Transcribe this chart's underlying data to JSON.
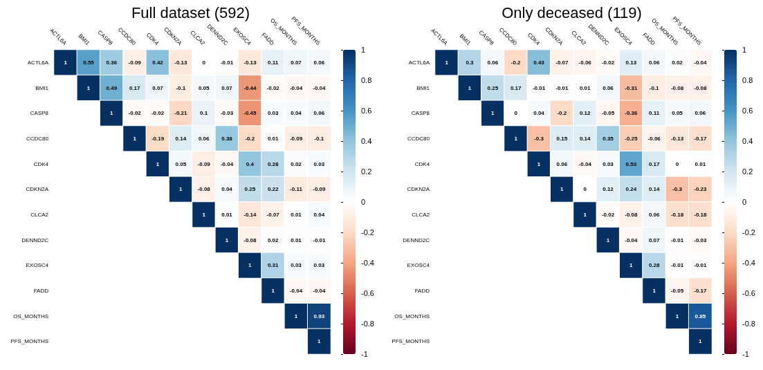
{
  "chart_data": [
    {
      "type": "heatmap",
      "title": "Full dataset (592)",
      "categories": [
        "ACTL6A",
        "BMI1",
        "CASP8",
        "CCDC80",
        "CDK4",
        "CDKN2A",
        "CLCA2",
        "DENND2C",
        "EXOSC4",
        "FADD",
        "OS_MONTHS",
        "PFS_MONTHS"
      ],
      "y_categories": [
        "ACTL6A",
        "BMI1",
        "CASP8",
        "CCDC80",
        "CDK4",
        "CDKN2A",
        "CLCA2",
        "DENND2C",
        "EXOSC4",
        "FADD",
        "OS_MONTHS",
        "PFS_MONTHS"
      ],
      "cells": [
        [
          1,
          0.55,
          0.36,
          -0.09,
          0.42,
          -0.13,
          0,
          -0.01,
          -0.13,
          0.11,
          0.07,
          0.06
        ],
        [
          null,
          1,
          0.49,
          0.17,
          0.07,
          -0.1,
          0.05,
          0.07,
          -0.44,
          -0.02,
          -0.04,
          -0.04
        ],
        [
          null,
          null,
          1,
          -0.02,
          -0.02,
          -0.21,
          0.1,
          -0.03,
          -0.45,
          0.03,
          0.04,
          0.06
        ],
        [
          null,
          null,
          null,
          1,
          -0.19,
          0.14,
          0.06,
          0.38,
          -0.2,
          0.01,
          -0.09,
          -0.1
        ],
        [
          null,
          null,
          null,
          null,
          1,
          0.05,
          -0.09,
          -0.04,
          0.4,
          0.28,
          0.02,
          0.03
        ],
        [
          null,
          null,
          null,
          null,
          null,
          1,
          -0.08,
          0.04,
          0.25,
          0.22,
          -0.11,
          -0.09
        ],
        [
          null,
          null,
          null,
          null,
          null,
          null,
          1,
          0.01,
          -0.14,
          -0.07,
          0.01,
          0.04
        ],
        [
          null,
          null,
          null,
          null,
          null,
          null,
          null,
          1,
          -0.08,
          0.02,
          0.01,
          -0.01
        ],
        [
          null,
          null,
          null,
          null,
          null,
          null,
          null,
          null,
          1,
          0.31,
          0.03,
          0.03
        ],
        [
          null,
          null,
          null,
          null,
          null,
          null,
          null,
          null,
          null,
          1,
          -0.04,
          -0.04
        ],
        [
          null,
          null,
          null,
          null,
          null,
          null,
          null,
          null,
          null,
          null,
          1,
          0.93
        ],
        [
          null,
          null,
          null,
          null,
          null,
          null,
          null,
          null,
          null,
          null,
          null,
          1
        ]
      ],
      "clim": [
        -1,
        1
      ],
      "cticks": [
        -1,
        -0.8,
        -0.6,
        -0.4,
        -0.2,
        0,
        0.2,
        0.4,
        0.6,
        0.8,
        1
      ],
      "data_labels": true
    },
    {
      "type": "heatmap",
      "title": "Only deceased (119)",
      "categories": [
        "ACTL6A",
        "BMI1",
        "CASP8",
        "CCDC80",
        "CDK4",
        "CDKN2A",
        "CLCA2",
        "DENND2C",
        "EXOSC4",
        "FADD",
        "OS_MONTHS",
        "PFS_MONTHS"
      ],
      "y_categories": [
        "ACTL6A",
        "BMI1",
        "CASP8",
        "CCDC80",
        "CDK4",
        "CDKN2A",
        "CLCA2",
        "DENND2C",
        "EXOSC4",
        "FADD",
        "OS_MONTHS",
        "PFS_MONTHS"
      ],
      "cells": [
        [
          1,
          0.3,
          0.06,
          -0.2,
          0.43,
          -0.07,
          -0.06,
          -0.02,
          0.13,
          0.06,
          0.02,
          -0.04
        ],
        [
          null,
          1,
          0.25,
          0.17,
          -0.01,
          -0.01,
          0.01,
          0.06,
          -0.31,
          -0.1,
          -0.08,
          -0.08
        ],
        [
          null,
          null,
          1,
          0,
          0.04,
          -0.2,
          0.12,
          -0.05,
          -0.36,
          0.11,
          0.05,
          0.06
        ],
        [
          null,
          null,
          null,
          1,
          -0.3,
          0.15,
          0.14,
          0.35,
          -0.25,
          -0.06,
          -0.13,
          -0.17
        ],
        [
          null,
          null,
          null,
          null,
          1,
          0.06,
          -0.04,
          0.03,
          0.53,
          0.17,
          0,
          0.01
        ],
        [
          null,
          null,
          null,
          null,
          null,
          1,
          0,
          0.12,
          0.24,
          0.14,
          -0.3,
          -0.23
        ],
        [
          null,
          null,
          null,
          null,
          null,
          null,
          1,
          -0.02,
          -0.08,
          0.06,
          -0.18,
          -0.18
        ],
        [
          null,
          null,
          null,
          null,
          null,
          null,
          null,
          1,
          -0.04,
          0.07,
          -0.01,
          -0.03
        ],
        [
          null,
          null,
          null,
          null,
          null,
          null,
          null,
          null,
          1,
          0.28,
          -0.01,
          -0.01
        ],
        [
          null,
          null,
          null,
          null,
          null,
          null,
          null,
          null,
          null,
          1,
          -0.05,
          -0.17
        ],
        [
          null,
          null,
          null,
          null,
          null,
          null,
          null,
          null,
          null,
          null,
          1,
          0.85
        ],
        [
          null,
          null,
          null,
          null,
          null,
          null,
          null,
          null,
          null,
          null,
          null,
          1
        ]
      ],
      "clim": [
        -1,
        1
      ],
      "cticks": [
        -1,
        -0.8,
        -0.6,
        -0.4,
        -0.2,
        0,
        0.2,
        0.4,
        0.6,
        0.8,
        1
      ],
      "data_labels": true
    }
  ]
}
